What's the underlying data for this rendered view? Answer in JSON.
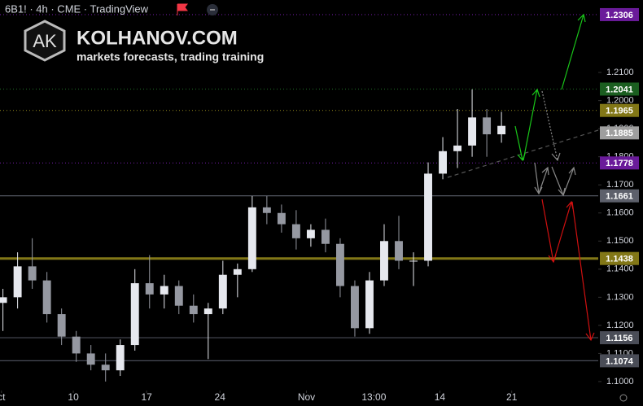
{
  "header": {
    "symbol": "6B1! · 4h · CME · TradingView",
    "logo_initials": "AK",
    "brand": "KOLHANOV.COM",
    "tagline": "markets forecasts, trading training"
  },
  "chart_data": {
    "type": "candlestick",
    "up_color": "#e6e8ee",
    "down_color": "#9598a1",
    "open": [
      1.128,
      1.13,
      1.141,
      1.136,
      1.124,
      1.116,
      1.11,
      1.106,
      1.104,
      1.113,
      1.135,
      1.131,
      1.134,
      1.127,
      1.124,
      1.126,
      1.138,
      1.14,
      1.162,
      1.16,
      1.156,
      1.151,
      1.154,
      1.149,
      1.134,
      1.119,
      1.136,
      1.15,
      1.143,
      1.143,
      1.174,
      1.182,
      1.184,
      1.194,
      1.188
    ],
    "high": [
      1.133,
      1.146,
      1.151,
      1.139,
      1.126,
      1.118,
      1.113,
      1.11,
      1.115,
      1.14,
      1.145,
      1.138,
      1.136,
      1.131,
      1.128,
      1.143,
      1.142,
      1.166,
      1.166,
      1.163,
      1.161,
      1.156,
      1.158,
      1.151,
      1.136,
      1.139,
      1.156,
      1.159,
      1.146,
      1.178,
      1.187,
      1.197,
      1.204,
      1.197,
      1.196
    ],
    "low": [
      1.118,
      1.126,
      1.133,
      1.121,
      1.113,
      1.107,
      1.104,
      1.1,
      1.102,
      1.111,
      1.126,
      1.126,
      1.124,
      1.121,
      1.108,
      1.124,
      1.13,
      1.139,
      1.156,
      1.153,
      1.147,
      1.148,
      1.146,
      1.13,
      1.116,
      1.117,
      1.134,
      1.14,
      1.134,
      1.141,
      1.172,
      1.176,
      1.18,
      1.18,
      1.185
    ],
    "close": [
      1.13,
      1.141,
      1.136,
      1.124,
      1.116,
      1.11,
      1.106,
      1.104,
      1.113,
      1.135,
      1.131,
      1.134,
      1.127,
      1.124,
      1.126,
      1.138,
      1.14,
      1.162,
      1.16,
      1.156,
      1.151,
      1.154,
      1.149,
      1.134,
      1.119,
      1.136,
      1.15,
      1.143,
      1.143,
      1.174,
      1.182,
      1.184,
      1.194,
      1.188,
      1.191
    ],
    "xlim": [
      -0.2,
      40.6
    ],
    "xticks": [
      {
        "value": -0.1,
        "label": "ct"
      },
      {
        "value": 4.8,
        "label": "10"
      },
      {
        "value": 9.8,
        "label": "17"
      },
      {
        "value": 14.8,
        "label": "24"
      },
      {
        "value": 20.7,
        "label": "Nov"
      },
      {
        "value": 25.3,
        "label": "13:00"
      },
      {
        "value": 29.8,
        "label": "14"
      },
      {
        "value": 34.7,
        "label": "21"
      }
    ],
    "ylim": [
      1.0968,
      1.2358
    ],
    "yticks": [
      {
        "value": 1.1,
        "label": "1.1000"
      },
      {
        "value": 1.11,
        "label": "1.1100"
      },
      {
        "value": 1.12,
        "label": "1.1200"
      },
      {
        "value": 1.13,
        "label": "1.1300"
      },
      {
        "value": 1.14,
        "label": "1.1400"
      },
      {
        "value": 1.15,
        "label": "1.1500"
      },
      {
        "value": 1.16,
        "label": "1.1600"
      },
      {
        "value": 1.17,
        "label": "1.1700"
      },
      {
        "value": 1.18,
        "label": "1.1800"
      },
      {
        "value": 1.19,
        "label": "1.1900"
      },
      {
        "value": 1.2,
        "label": "1.2000"
      },
      {
        "value": 1.21,
        "label": "1.2100"
      }
    ],
    "levels": [
      {
        "value": 1.2306,
        "color": "#6a1b9a",
        "style": "dotted"
      },
      {
        "value": 1.2041,
        "color": "#1b5e20",
        "style": "dotted"
      },
      {
        "value": 1.1965,
        "color": "#827717",
        "style": "dotted"
      },
      {
        "value": 1.1885,
        "color": "#9e9e9e",
        "style": "none"
      },
      {
        "value": 1.1778,
        "color": "#6a1b9a",
        "style": "dotted"
      },
      {
        "value": 1.1661,
        "color": "#5d606b",
        "style": "solid"
      },
      {
        "value": 1.1438,
        "color": "#827717",
        "style": "thick"
      },
      {
        "value": 1.1156,
        "color": "#4a4d57",
        "style": "solid"
      },
      {
        "value": 1.1074,
        "color": "#4a4d57",
        "style": "solid"
      }
    ]
  }
}
